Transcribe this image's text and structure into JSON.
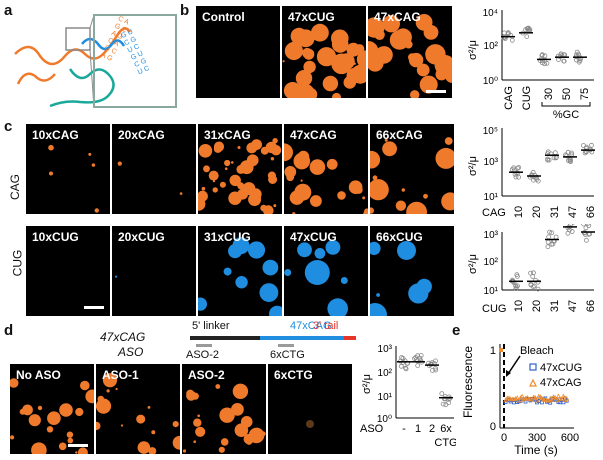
{
  "figure_labels": {
    "a": "a",
    "b": "b",
    "c": "c",
    "d": "d",
    "e": "e"
  },
  "panel_a": {
    "seq_letters_orange": [
      "C",
      "A",
      "G",
      "C",
      "A",
      "G",
      "C",
      "A",
      "G",
      "C",
      "A",
      "G"
    ],
    "seq_letters_blue": [
      "G",
      "U",
      "C",
      "G",
      "U",
      "C",
      "G",
      "U",
      "C",
      "G",
      "U",
      "C"
    ]
  },
  "panel_b": {
    "images": [
      "Control",
      "47xCUG",
      "47xCAG"
    ],
    "chart_data": {
      "type": "scatter",
      "ylabel": "σ²/μ",
      "yscale": "log",
      "ylim": [
        1,
        10000
      ],
      "yticks": [
        "10⁰",
        "10²",
        "10⁴"
      ],
      "categories": [
        "CAG",
        "CUG",
        "30",
        "50",
        "75"
      ],
      "group_label": "%GC",
      "medians": [
        300,
        500,
        15,
        20,
        20
      ]
    }
  },
  "panel_c": {
    "row_labels": [
      "CAG",
      "CUG"
    ],
    "images_cag": [
      "10xCAG",
      "20xCAG",
      "31xCAG",
      "47xCAG",
      "66xCAG"
    ],
    "images_cug": [
      "10xCUG",
      "20xCUG",
      "31xCUG",
      "47xCUG",
      "66xCUG"
    ],
    "chart_cag": {
      "type": "scatter",
      "ylabel": "σ²/μ",
      "yscale": "log",
      "ylim": [
        10,
        100000
      ],
      "yticks": [
        "10¹",
        "10³",
        "10⁵"
      ],
      "axis_label": "CAG",
      "categories": [
        "10",
        "20",
        "31",
        "47",
        "66"
      ],
      "medians": [
        250,
        150,
        2500,
        2000,
        5000
      ]
    },
    "chart_cug": {
      "type": "scatter",
      "ylabel": "σ²/μ",
      "yscale": "log",
      "ylim": [
        10,
        1000
      ],
      "yticks": [
        "10¹",
        "10²",
        "10³"
      ],
      "axis_label": "CUG",
      "categories": [
        "10",
        "20",
        "31",
        "47",
        "66"
      ],
      "medians": [
        20,
        20,
        550,
        1500,
        1000
      ]
    }
  },
  "panel_d": {
    "construct_title": "47xCAG",
    "aso_label": "ASO",
    "segments": [
      "5' linker",
      "47xCAG",
      "3' tail"
    ],
    "aso_marks": [
      "ASO-2",
      "6xCTG"
    ],
    "images": [
      "No ASO",
      "ASO-1",
      "ASO-2",
      "6xCTG"
    ],
    "chart_data": {
      "type": "scatter",
      "ylabel": "σ²/μ",
      "yscale": "log",
      "ylim": [
        1,
        1000
      ],
      "yticks": [
        "10⁰",
        "10¹",
        "10²",
        "10³"
      ],
      "axis_label": "ASO",
      "categories": [
        "-",
        "1",
        "2",
        "6x"
      ],
      "extra_label": "CTG",
      "medians": [
        220,
        220,
        160,
        7
      ]
    }
  },
  "panel_e": {
    "chart_data": {
      "type": "scatter",
      "xlabel": "Time (s)",
      "ylabel": "Fluorescence",
      "xticks": [
        "0",
        "300",
        "600"
      ],
      "yticks": [
        "0",
        "1"
      ],
      "xlim": [
        0,
        600
      ],
      "ylim": [
        0,
        1
      ],
      "annotation": "Bleach",
      "series": [
        {
          "name": "47xCUG",
          "color": "#2e5fc9",
          "level": 0.35
        },
        {
          "name": "47xCAG",
          "color": "#f08a2a",
          "level": 0.38
        }
      ]
    }
  },
  "colors": {
    "orange": "#f07a2c",
    "blue": "#1f8de0",
    "teal": "#1aa89a",
    "red": "#e8352a",
    "gray": "#9a9a9a"
  }
}
